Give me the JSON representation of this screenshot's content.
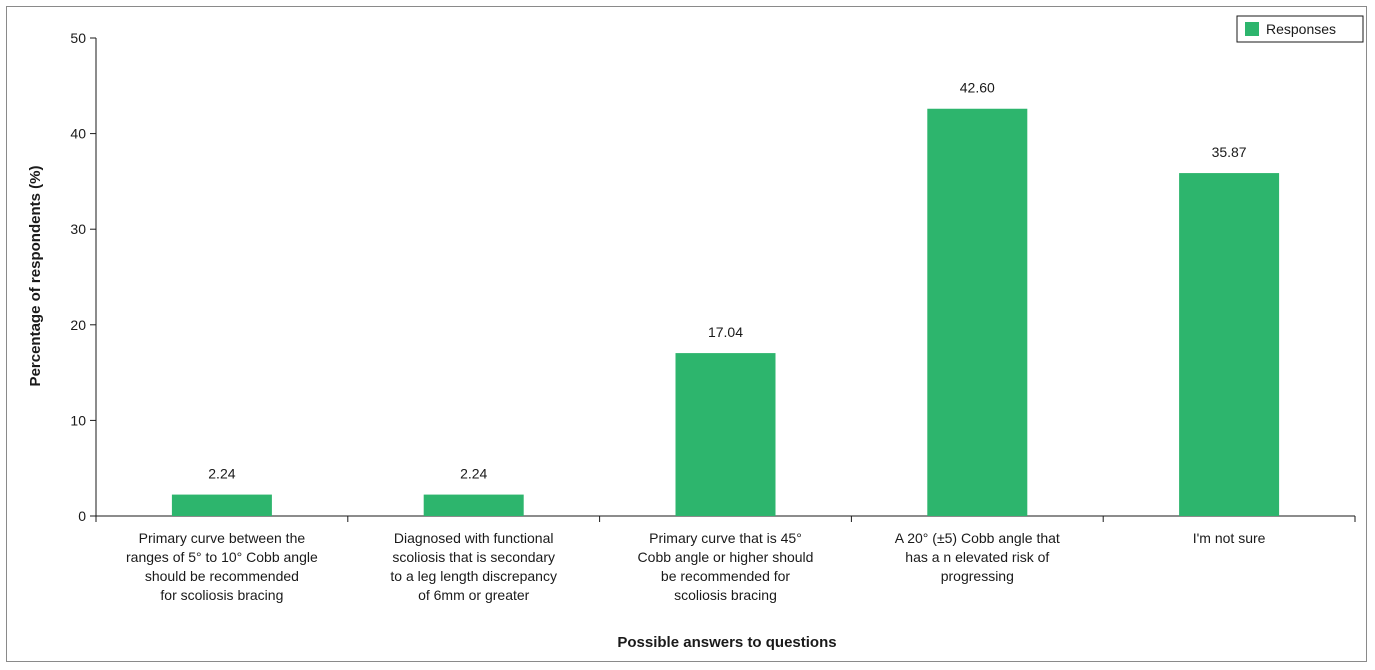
{
  "chart_data": {
    "type": "bar",
    "title": "",
    "xlabel": "Possible answers to questions",
    "ylabel": "Percentage of respondents (%)",
    "ylim": [
      0,
      50
    ],
    "yticks": [
      0,
      10,
      20,
      30,
      40,
      50
    ],
    "grid": false,
    "legend_position": "top-right",
    "bar_color": "#2db56d",
    "series": [
      {
        "name": "Responses",
        "values": [
          2.24,
          2.24,
          17.04,
          42.6,
          35.87
        ],
        "labels": [
          "2.24",
          "2.24",
          "17.04",
          "42.60",
          "35.87"
        ]
      }
    ],
    "categories": [
      [
        "Primary curve between the",
        "ranges of 5° to 10° Cobb angle",
        "should be recommended",
        "for scoliosis bracing"
      ],
      [
        "Diagnosed with functional",
        "scoliosis that is secondary",
        "to a leg length discrepancy",
        "of 6mm or greater"
      ],
      [
        "Primary curve that is 45°",
        "Cobb angle or higher should",
        "be recommended for",
        "scoliosis bracing"
      ],
      [
        "A 20° (±5) Cobb angle that",
        "has a n elevated risk of",
        "progressing"
      ],
      [
        "I'm not sure"
      ]
    ]
  }
}
